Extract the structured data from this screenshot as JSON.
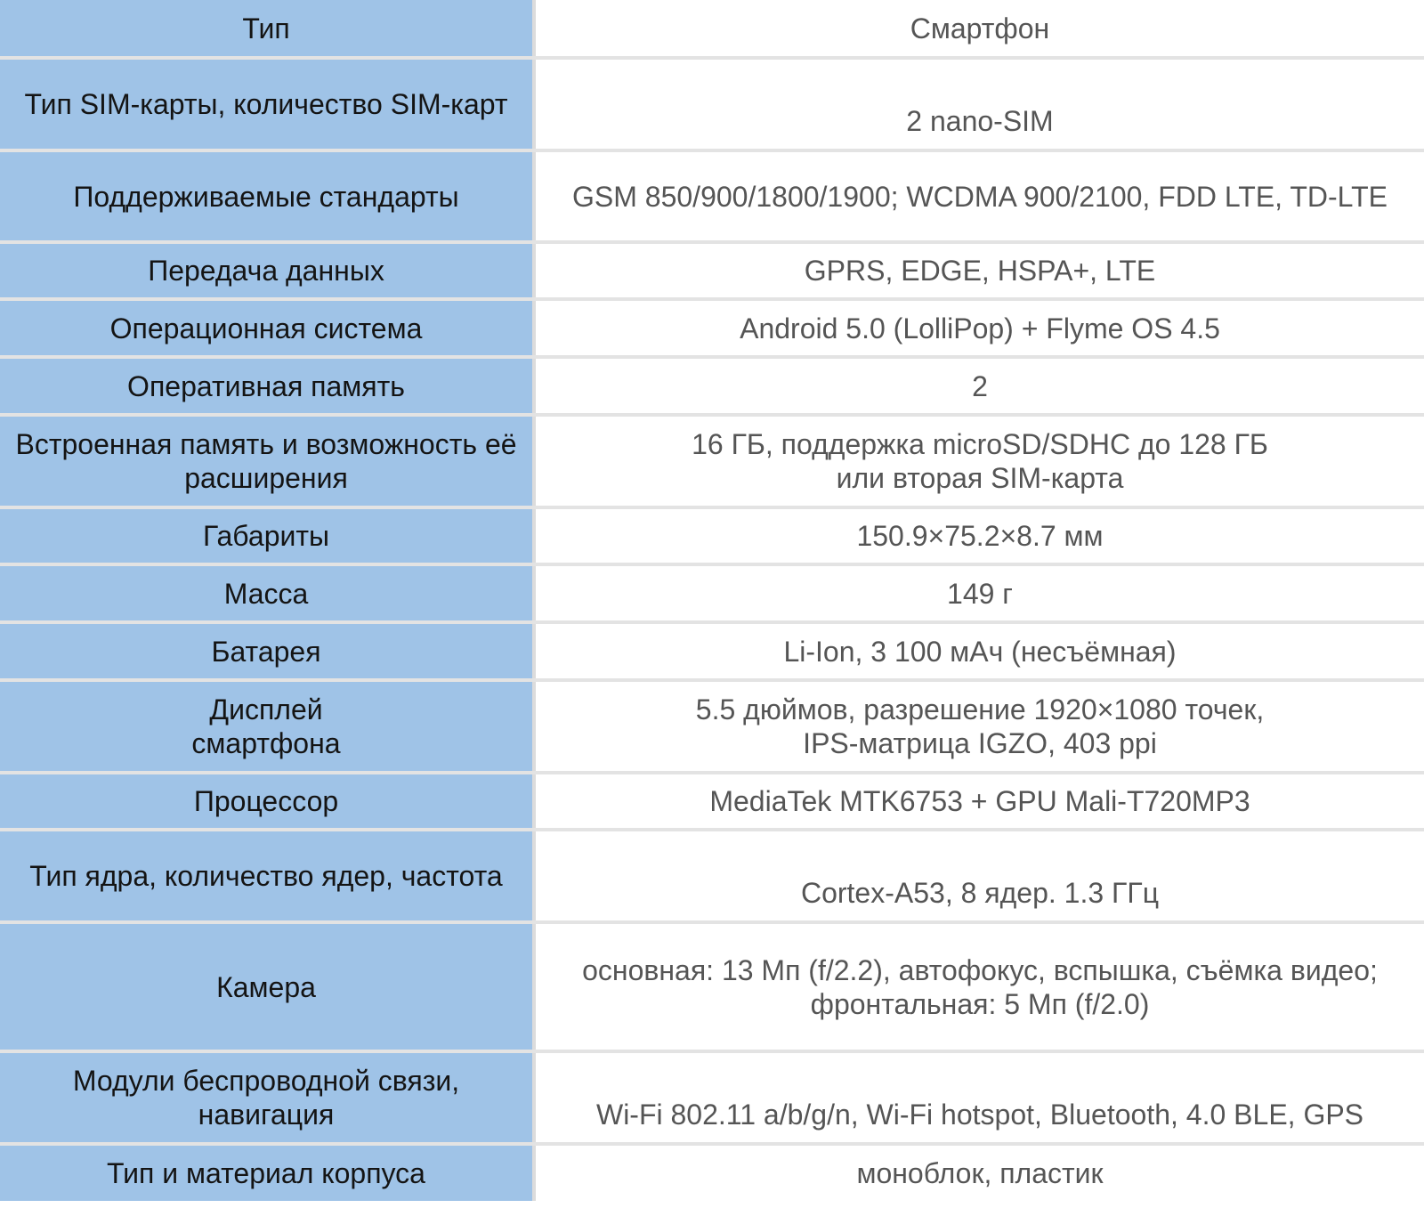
{
  "colors": {
    "label_background": "#9fc3e7",
    "value_background": "#ffffff",
    "label_text": "#141414",
    "value_text": "#555555",
    "row_separator": "#e3e3e3"
  },
  "rows": [
    {
      "label": "Тип",
      "value": "Смартфон"
    },
    {
      "label": "Тип SIM-карты, количество SIM-карт",
      "value": "2  nano-SIM"
    },
    {
      "label": "Поддерживаемые стандарты",
      "value": "GSM 850/900/1800/1900; WCDMA 900/2100, FDD LTE, TD-LTE"
    },
    {
      "label": "Передача данных",
      "value": "GPRS, EDGE, HSPA+, LTE"
    },
    {
      "label": "Операционная система",
      "value": "Android 5.0 (LolliPop) + Flyme OS 4.5"
    },
    {
      "label": "Оперативная память",
      "value": "2"
    },
    {
      "label": "Встроенная память и возможность её расширения",
      "value": "16 ГБ, поддержка microSD/SDHC до 128 ГБ\nили вторая SIM-карта"
    },
    {
      "label": "Габариты",
      "value": "150.9×75.2×8.7 мм"
    },
    {
      "label": "Масса",
      "value": "149 г"
    },
    {
      "label": "Батарея",
      "value": "Li-Ion, 3 100 мАч (несъёмная)"
    },
    {
      "label": "Дисплей\nсмартфона",
      "value": "5.5 дюймов, разрешение 1920×1080 точек,\nIPS-матрица IGZO, 403 ppi"
    },
    {
      "label": "Процессор",
      "value": "MediaTek MTK6753 + GPU Mali-T720MP3"
    },
    {
      "label": "Тип ядра, количество ядер, частота",
      "value": "Cortex-A53, 8 ядер. 1.3 ГГц"
    },
    {
      "label": "Камера",
      "value": "основная: 13 Мп (f/2.2), автофокус, вспышка, съёмка видео;\nфронтальная: 5 Мп (f/2.0)"
    },
    {
      "label": "Модули беспроводной связи, навигация",
      "value": "Wi-Fi 802.11 a/b/g/n, Wi-Fi hotspot, Bluetooth, 4.0 BLE, GPS"
    },
    {
      "label": "Тип и материал корпуса",
      "value": "моноблок, пластик"
    }
  ]
}
